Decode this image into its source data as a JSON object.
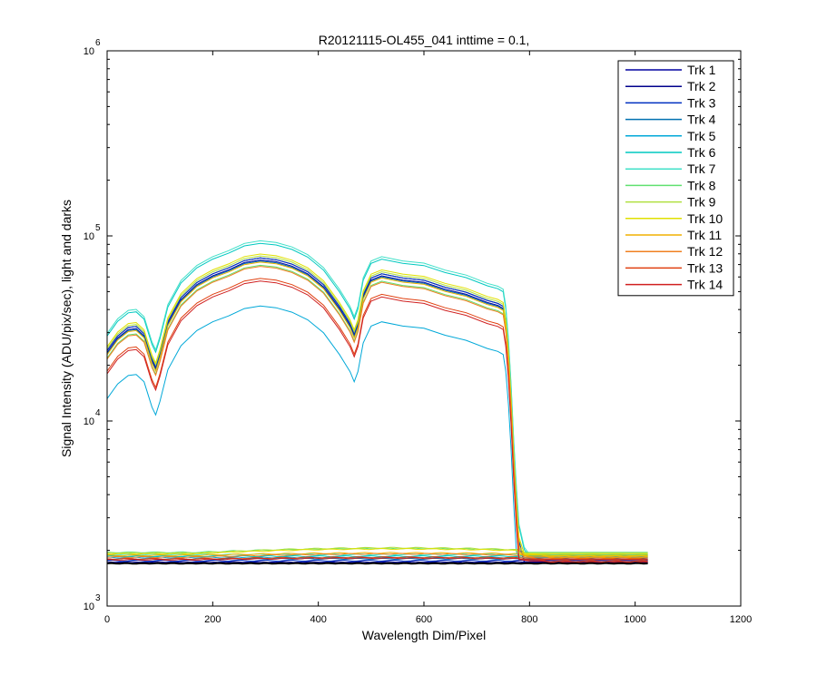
{
  "chart_data": {
    "type": "line",
    "title": "R20121115-OL455_041 inttime = 0.1,",
    "xlabel": "Wavelength Dim/Pixel",
    "ylabel": "Signal Intensity (ADU/pix/sec), light and darks",
    "xlim": [
      0,
      1200
    ],
    "ylim": [
      1000,
      1000000
    ],
    "yscale": "log",
    "xticks": [
      0,
      200,
      400,
      600,
      800,
      1000,
      1200
    ],
    "xtick_labels": [
      "0",
      "200",
      "400",
      "600",
      "800",
      "1000",
      "1200"
    ],
    "yticks": [
      1000,
      10000,
      100000,
      1000000
    ],
    "ytick_labels": [
      {
        "base": "10",
        "exp": "3"
      },
      {
        "base": "10",
        "exp": "4"
      },
      {
        "base": "10",
        "exp": "5"
      },
      {
        "base": "10",
        "exp": "6"
      }
    ],
    "grid": false,
    "legend_position": "top-right",
    "series": [
      {
        "name": "Trk 1",
        "color": "#0000a0",
        "factor": 0.78,
        "dark": 1720,
        "peak_dark": 0
      },
      {
        "name": "Trk 2",
        "color": "#00008c",
        "factor": 0.8,
        "dark": 1730,
        "peak_dark": 0
      },
      {
        "name": "Trk 3",
        "color": "#0030c0",
        "factor": 0.8,
        "dark": 1760,
        "peak_dark": 0
      },
      {
        "name": "Trk 4",
        "color": "#0070b0",
        "factor": 0.77,
        "dark": 1800,
        "peak_dark": 0
      },
      {
        "name": "Trk 5",
        "color": "#00a8d8",
        "factor": 0.44,
        "dark": 1830,
        "peak_dark": 0
      },
      {
        "name": "Trk 6",
        "color": "#00c8c0",
        "factor": 0.96,
        "dark": 1860,
        "peak_dark": 0
      },
      {
        "name": "Trk 7",
        "color": "#40e0c8",
        "factor": 0.99,
        "dark": 1900,
        "peak_dark": 0
      },
      {
        "name": "Trk 8",
        "color": "#60e070",
        "factor": 0.73,
        "dark": 1950,
        "peak_dark": 0.05
      },
      {
        "name": "Trk 9",
        "color": "#b0e040",
        "factor": 0.82,
        "dark": 1930,
        "peak_dark": 0.07
      },
      {
        "name": "Trk 10",
        "color": "#e0e000",
        "factor": 0.84,
        "dark": 1920,
        "peak_dark": 0.06
      },
      {
        "name": "Trk 11",
        "color": "#f0b000",
        "factor": 0.76,
        "dark": 1880,
        "peak_dark": 0.03
      },
      {
        "name": "Trk 12",
        "color": "#f08020",
        "factor": 0.72,
        "dark": 1840,
        "peak_dark": 0.04
      },
      {
        "name": "Trk 13",
        "color": "#e04010",
        "factor": 0.62,
        "dark": 1800,
        "peak_dark": 0.02
      },
      {
        "name": "Trk 14",
        "color": "#d02020",
        "factor": 0.6,
        "dark": 1780,
        "peak_dark": 0.02
      }
    ],
    "profile": {
      "x": [
        0,
        20,
        40,
        55,
        70,
        85,
        92,
        100,
        115,
        140,
        170,
        200,
        230,
        260,
        290,
        320,
        350,
        380,
        410,
        440,
        460,
        468,
        475,
        485,
        500,
        520,
        560,
        600,
        640,
        680,
        720,
        740,
        750,
        755,
        760,
        765,
        770,
        775,
        780,
        790,
        800,
        810,
        830,
        860,
        900,
        950,
        1000,
        1024
      ],
      "y": [
        30000,
        36000,
        40000,
        40500,
        37000,
        27000,
        24500,
        29000,
        43000,
        58000,
        70000,
        78000,
        84000,
        92000,
        95000,
        93000,
        88000,
        80000,
        68000,
        52000,
        42000,
        37000,
        42000,
        60000,
        74000,
        78000,
        74000,
        72000,
        66000,
        62000,
        56000,
        54000,
        52000,
        42000,
        28000,
        16000,
        8000,
        4500,
        2800,
        2100,
        1900,
        1850,
        1820,
        1800,
        1790,
        1780,
        1770,
        1770
      ]
    }
  }
}
